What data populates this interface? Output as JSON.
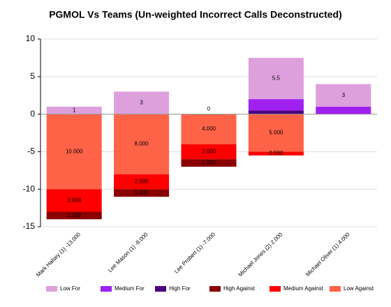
{
  "chart_data": {
    "type": "stacked-bar",
    "title": "PGMOL Vs Teams (Un-weighted Incorrect Calls Deconstructed)",
    "categories": [
      "Mark Halsey (1) -13.000",
      "Lee Mason (1) -8.000",
      "Lee Probert (1) -7.000",
      "Michael Jones (2) 2.000",
      "Michael Oliver (1) 4.000"
    ],
    "series": [
      {
        "name": "Low For",
        "color": "#dda0dd",
        "values": [
          1,
          3,
          0,
          5.5,
          3
        ]
      },
      {
        "name": "Medium For",
        "color": "#a020f0",
        "values": [
          0,
          0,
          0,
          1.5,
          1
        ]
      },
      {
        "name": "High For",
        "color": "#4b0082",
        "values": [
          0,
          0,
          0,
          0.5,
          0
        ]
      },
      {
        "name": "High Against",
        "color": "#8b0000",
        "values": [
          -1,
          -1,
          -1,
          0,
          0
        ],
        "value_labels": [
          "1.000",
          "1.000",
          "1.000",
          null,
          null
        ]
      },
      {
        "name": "Medium Against",
        "color": "#ff0000",
        "values": [
          -3,
          -2,
          -2,
          -0.5,
          0
        ],
        "value_labels": [
          "3.000",
          "2.000",
          "2.000",
          "0.500",
          null
        ]
      },
      {
        "name": "Low Against",
        "color": "#ff6347",
        "values": [
          -10,
          -8,
          -4,
          -5,
          0
        ],
        "value_labels": [
          "10.000",
          "8.000",
          "4.000",
          "5.000",
          null
        ]
      }
    ],
    "ylim": [
      -15,
      10
    ],
    "yticks": [
      -15,
      -10,
      -5,
      0,
      5,
      10
    ],
    "grid": true
  }
}
